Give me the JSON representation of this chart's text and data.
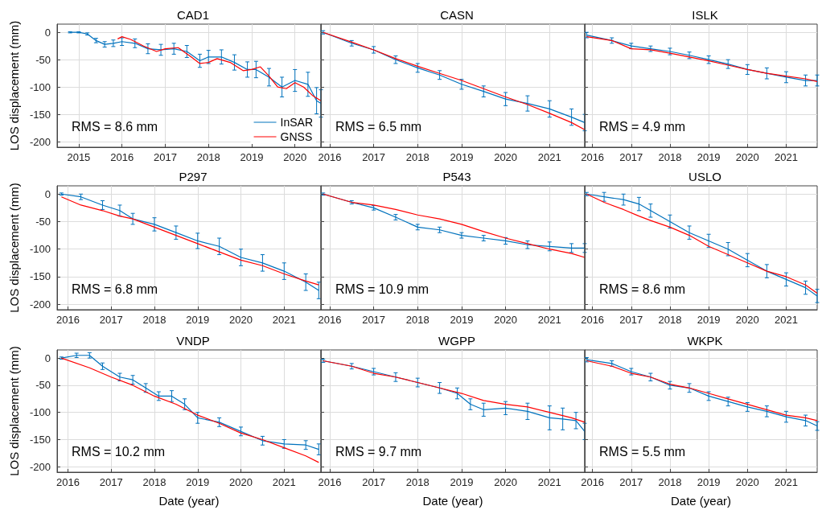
{
  "chart_data": [
    {
      "type": "line",
      "title": "CAD1",
      "ylabel": "LOS displacement (mm)",
      "xlim": [
        2014.5,
        2020.6
      ],
      "xticks": [
        2015,
        2016,
        2017,
        2018,
        2019,
        2020
      ],
      "ylim": [
        -210,
        15
      ],
      "yticks": [
        -200,
        -150,
        -100,
        -50,
        0
      ],
      "grid": true,
      "legend": "bottom right",
      "annotations": [
        "RMS = 8.6 mm"
      ],
      "series": [
        {
          "name": "InSAR",
          "color": "#0072bd",
          "x": [
            2014.8,
            2015.0,
            2015.2,
            2015.4,
            2015.6,
            2015.8,
            2016.0,
            2016.3,
            2016.6,
            2016.9,
            2017.2,
            2017.5,
            2017.8,
            2018.0,
            2018.3,
            2018.6,
            2018.9,
            2019.1,
            2019.4,
            2019.7,
            2020.0,
            2020.3,
            2020.5,
            2020.6
          ],
          "values": [
            0,
            0,
            -3,
            -15,
            -22,
            -20,
            -17,
            -20,
            -30,
            -32,
            -30,
            -35,
            -52,
            -45,
            -45,
            -55,
            -68,
            -68,
            -82,
            -100,
            -88,
            -95,
            -125,
            -130
          ],
          "errors": [
            1,
            1,
            2,
            4,
            5,
            6,
            7,
            8,
            9,
            10,
            10,
            11,
            12,
            12,
            13,
            14,
            14,
            15,
            16,
            18,
            20,
            22,
            24,
            25
          ]
        },
        {
          "name": "GNSS",
          "color": "#ff0000",
          "x": [
            2015.9,
            2016.0,
            2016.2,
            2016.5,
            2016.8,
            2017.0,
            2017.3,
            2017.6,
            2017.8,
            2018.0,
            2018.2,
            2018.5,
            2018.8,
            2019.0,
            2019.2,
            2019.4,
            2019.6,
            2019.8,
            2020.0,
            2020.2,
            2020.4,
            2020.6
          ],
          "values": [
            -12,
            -8,
            -13,
            -25,
            -35,
            -30,
            -28,
            -45,
            -57,
            -55,
            -48,
            -55,
            -70,
            -68,
            -63,
            -80,
            -100,
            -103,
            -92,
            -100,
            -115,
            -125
          ]
        }
      ]
    },
    {
      "type": "line",
      "title": "CASN",
      "xlim": [
        2015.8,
        2021.8
      ],
      "xticks": [
        2016,
        2017,
        2018,
        2019,
        2020,
        2021
      ],
      "ylim": [
        -210,
        15
      ],
      "yticks": [
        -200,
        -150,
        -100,
        -50,
        0
      ],
      "grid": true,
      "tick_labels": "x",
      "annotations": [
        "RMS = 6.5 mm"
      ],
      "series": [
        {
          "color": "#0072bd",
          "x": [
            2015.85,
            2016.5,
            2017,
            2017.5,
            2018,
            2018.5,
            2019,
            2019.5,
            2020,
            2020.5,
            2021,
            2021.5,
            2021.8
          ],
          "values": [
            0,
            -20,
            -32,
            -50,
            -65,
            -78,
            -95,
            -108,
            -122,
            -130,
            -140,
            -155,
            -165
          ],
          "errors": [
            3,
            5,
            6,
            7,
            8,
            8,
            9,
            10,
            12,
            14,
            15,
            15,
            15
          ]
        },
        {
          "color": "#ff0000",
          "x": [
            2015.85,
            2016.5,
            2017,
            2017.5,
            2018,
            2018.5,
            2019,
            2019.5,
            2020,
            2020.5,
            2021,
            2021.5,
            2021.8
          ],
          "values": [
            0,
            -18,
            -32,
            -48,
            -62,
            -75,
            -88,
            -103,
            -118,
            -132,
            -148,
            -165,
            -178
          ]
        }
      ]
    },
    {
      "type": "line",
      "title": "ISLK",
      "xlim": [
        2015.8,
        2021.8
      ],
      "xticks": [
        2016,
        2017,
        2018,
        2019,
        2020,
        2021
      ],
      "ylim": [
        -210,
        15
      ],
      "yticks": [
        -200,
        -150,
        -100,
        -50,
        0
      ],
      "grid": true,
      "tick_labels": "x",
      "annotations": [
        "RMS = 4.9 mm"
      ],
      "series": [
        {
          "color": "#0072bd",
          "x": [
            2015.85,
            2016.5,
            2017,
            2017.5,
            2018,
            2018.5,
            2019,
            2019.5,
            2020,
            2020.5,
            2021,
            2021.5,
            2021.8
          ],
          "values": [
            -5,
            -15,
            -25,
            -30,
            -35,
            -42,
            -50,
            -58,
            -68,
            -75,
            -82,
            -88,
            -88
          ],
          "errors": [
            5,
            5,
            5,
            5,
            6,
            6,
            7,
            8,
            9,
            10,
            10,
            10,
            10
          ]
        },
        {
          "color": "#ff0000",
          "x": [
            2015.85,
            2016.5,
            2017,
            2017.5,
            2018,
            2018.5,
            2019,
            2019.5,
            2020,
            2020.5,
            2021,
            2021.5,
            2021.8
          ],
          "values": [
            -8,
            -15,
            -30,
            -32,
            -38,
            -45,
            -52,
            -60,
            -68,
            -75,
            -80,
            -85,
            -90
          ]
        }
      ]
    },
    {
      "type": "line",
      "title": "P297",
      "ylabel": "LOS displacement (mm)",
      "xlim": [
        2015.75,
        2021.85
      ],
      "xticks": [
        2016,
        2017,
        2018,
        2019,
        2020,
        2021
      ],
      "ylim": [
        -210,
        15
      ],
      "yticks": [
        -200,
        -150,
        -100,
        -50,
        0
      ],
      "grid": true,
      "annotations": [
        "RMS = 6.8 mm"
      ],
      "series": [
        {
          "color": "#0072bd",
          "x": [
            2015.85,
            2016.3,
            2016.8,
            2017.2,
            2017.5,
            2018,
            2018.5,
            2019,
            2019.5,
            2020,
            2020.5,
            2021,
            2021.5,
            2021.8
          ],
          "values": [
            0,
            -5,
            -20,
            -30,
            -45,
            -55,
            -70,
            -85,
            -95,
            -115,
            -125,
            -140,
            -160,
            -175
          ],
          "errors": [
            2,
            5,
            8,
            10,
            10,
            12,
            12,
            14,
            15,
            15,
            15,
            15,
            15,
            15
          ]
        },
        {
          "color": "#ff0000",
          "x": [
            2015.85,
            2016.3,
            2016.8,
            2017.2,
            2017.5,
            2018,
            2018.5,
            2019,
            2019.5,
            2020,
            2020.5,
            2021,
            2021.5,
            2021.8
          ],
          "values": [
            -5,
            -20,
            -30,
            -40,
            -45,
            -60,
            -75,
            -90,
            -105,
            -120,
            -130,
            -145,
            -158,
            -165
          ]
        }
      ]
    },
    {
      "type": "line",
      "title": "P543",
      "xlim": [
        2015.8,
        2021.8
      ],
      "xticks": [
        2016,
        2017,
        2018,
        2019,
        2020,
        2021
      ],
      "ylim": [
        -210,
        15
      ],
      "yticks": [
        -200,
        -150,
        -100,
        -50,
        0
      ],
      "grid": true,
      "tick_labels": "x",
      "annotations": [
        "RMS = 10.9 mm"
      ],
      "series": [
        {
          "color": "#0072bd",
          "x": [
            2015.85,
            2016.5,
            2017,
            2017.5,
            2018,
            2018.5,
            2019,
            2019.5,
            2020,
            2020.5,
            2021,
            2021.5,
            2021.8
          ],
          "values": [
            0,
            -15,
            -25,
            -42,
            -60,
            -65,
            -75,
            -80,
            -85,
            -92,
            -95,
            -98,
            -98
          ],
          "errors": [
            2,
            3,
            4,
            5,
            5,
            5,
            5,
            5,
            6,
            7,
            8,
            8,
            8
          ]
        },
        {
          "color": "#ff0000",
          "x": [
            2015.85,
            2016.5,
            2017,
            2017.5,
            2018,
            2018.5,
            2019,
            2019.5,
            2020,
            2020.5,
            2021,
            2021.5,
            2021.8
          ],
          "values": [
            0,
            -15,
            -20,
            -28,
            -38,
            -45,
            -55,
            -68,
            -80,
            -90,
            -100,
            -108,
            -115
          ]
        }
      ]
    },
    {
      "type": "line",
      "title": "USLO",
      "xlim": [
        2015.8,
        2021.8
      ],
      "xticks": [
        2016,
        2017,
        2018,
        2019,
        2020,
        2021
      ],
      "ylim": [
        -210,
        15
      ],
      "yticks": [
        -200,
        -150,
        -100,
        -50,
        0
      ],
      "grid": true,
      "tick_labels": "x",
      "annotations": [
        "RMS = 8.6 mm"
      ],
      "series": [
        {
          "color": "#0072bd",
          "x": [
            2015.85,
            2016.3,
            2016.8,
            2017.2,
            2017.5,
            2018,
            2018.5,
            2019,
            2019.5,
            2020,
            2020.5,
            2021,
            2021.5,
            2021.8
          ],
          "values": [
            0,
            -5,
            -10,
            -18,
            -30,
            -50,
            -70,
            -85,
            -100,
            -120,
            -140,
            -155,
            -170,
            -185
          ],
          "errors": [
            3,
            8,
            10,
            12,
            12,
            12,
            12,
            12,
            12,
            12,
            12,
            12,
            12,
            12
          ]
        },
        {
          "color": "#ff0000",
          "x": [
            2015.85,
            2016.3,
            2016.8,
            2017.2,
            2017.5,
            2018,
            2018.5,
            2019,
            2019.5,
            2020,
            2020.5,
            2021,
            2021.5,
            2021.8
          ],
          "values": [
            0,
            -15,
            -28,
            -40,
            -48,
            -60,
            -75,
            -95,
            -110,
            -125,
            -140,
            -150,
            -165,
            -180
          ]
        }
      ]
    },
    {
      "type": "line",
      "title": "VNDP",
      "ylabel": "LOS displacement (mm)",
      "xlabel": "Date (year)",
      "xlim": [
        2015.75,
        2021.85
      ],
      "xticks": [
        2016,
        2017,
        2018,
        2019,
        2020,
        2021
      ],
      "ylim": [
        -210,
        15
      ],
      "yticks": [
        -200,
        -150,
        -100,
        -50,
        0
      ],
      "grid": true,
      "annotations": [
        "RMS = 10.2 mm"
      ],
      "series": [
        {
          "color": "#0072bd",
          "x": [
            2015.85,
            2016.2,
            2016.5,
            2016.8,
            2017.2,
            2017.5,
            2017.8,
            2018.1,
            2018.4,
            2018.7,
            2019,
            2019.5,
            2020,
            2020.5,
            2021,
            2021.5,
            2021.8
          ],
          "values": [
            0,
            5,
            5,
            -15,
            -35,
            -40,
            -55,
            -70,
            -70,
            -85,
            -110,
            -118,
            -135,
            -152,
            -158,
            -160,
            -168
          ],
          "errors": [
            2,
            4,
            5,
            6,
            7,
            8,
            8,
            8,
            10,
            10,
            10,
            8,
            8,
            8,
            8,
            8,
            10
          ]
        },
        {
          "color": "#ff0000",
          "x": [
            2015.85,
            2016.5,
            2017,
            2017.5,
            2018,
            2018.5,
            2019,
            2019.5,
            2020,
            2020.5,
            2021,
            2021.5,
            2021.8
          ],
          "values": [
            0,
            -18,
            -35,
            -50,
            -70,
            -85,
            -105,
            -120,
            -138,
            -150,
            -165,
            -180,
            -192
          ]
        }
      ]
    },
    {
      "type": "line",
      "title": "WGPP",
      "xlabel": "Date (year)",
      "xlim": [
        2015.8,
        2021.8
      ],
      "xticks": [
        2016,
        2017,
        2018,
        2019,
        2020,
        2021
      ],
      "ylim": [
        -210,
        15
      ],
      "yticks": [
        -200,
        -150,
        -100,
        -50,
        0
      ],
      "grid": true,
      "tick_labels": "x",
      "annotations": [
        "RMS = 9.7 mm"
      ],
      "series": [
        {
          "color": "#0072bd",
          "x": [
            2015.85,
            2016.5,
            2017,
            2017.5,
            2018,
            2018.5,
            2018.9,
            2019.2,
            2019.5,
            2020,
            2020.5,
            2021,
            2021.3,
            2021.6,
            2021.8
          ],
          "values": [
            -5,
            -15,
            -25,
            -35,
            -45,
            -55,
            -65,
            -85,
            -95,
            -92,
            -98,
            -110,
            -112,
            -115,
            -135
          ],
          "errors": [
            3,
            5,
            6,
            8,
            8,
            10,
            10,
            10,
            12,
            12,
            15,
            22,
            20,
            15,
            15
          ]
        },
        {
          "color": "#ff0000",
          "x": [
            2015.85,
            2016.5,
            2017,
            2017.5,
            2018,
            2018.5,
            2019,
            2019.5,
            2020,
            2020.5,
            2021,
            2021.5,
            2021.8
          ],
          "values": [
            -5,
            -15,
            -28,
            -35,
            -45,
            -55,
            -65,
            -78,
            -85,
            -90,
            -100,
            -110,
            -118
          ]
        }
      ]
    },
    {
      "type": "line",
      "title": "WKPK",
      "xlabel": "Date (year)",
      "xlim": [
        2015.8,
        2021.8
      ],
      "xticks": [
        2016,
        2017,
        2018,
        2019,
        2020,
        2021
      ],
      "ylim": [
        -210,
        15
      ],
      "yticks": [
        -200,
        -150,
        -100,
        -50,
        0
      ],
      "grid": true,
      "tick_labels": "x",
      "annotations": [
        "RMS = 5.5 mm"
      ],
      "series": [
        {
          "color": "#0072bd",
          "x": [
            2015.85,
            2016.5,
            2017,
            2017.5,
            2018,
            2018.5,
            2019,
            2019.5,
            2020,
            2020.5,
            2021,
            2021.5,
            2021.8
          ],
          "values": [
            -3,
            -10,
            -25,
            -35,
            -50,
            -55,
            -70,
            -80,
            -90,
            -98,
            -108,
            -115,
            -125
          ],
          "errors": [
            4,
            5,
            6,
            7,
            7,
            8,
            8,
            8,
            8,
            10,
            10,
            10,
            8
          ]
        },
        {
          "color": "#ff0000",
          "x": [
            2015.85,
            2016.5,
            2017,
            2017.5,
            2018,
            2018.5,
            2019,
            2019.5,
            2020,
            2020.5,
            2021,
            2021.5,
            2021.8
          ],
          "values": [
            -5,
            -15,
            -28,
            -35,
            -48,
            -55,
            -65,
            -75,
            -85,
            -95,
            -105,
            -110,
            -115
          ]
        }
      ]
    }
  ]
}
